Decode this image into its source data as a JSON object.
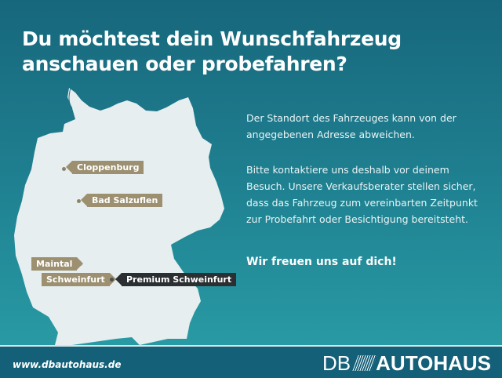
{
  "headline": "Du möchtest dein Wunschfahrzeug anschauen oder probefahren?",
  "map": {
    "locations": [
      {
        "label": "Cloppenburg",
        "style": "standard"
      },
      {
        "label": "Bad Salzuflen",
        "style": "standard"
      },
      {
        "label": "Maintal",
        "style": "standard"
      },
      {
        "label": "Schweinfurt",
        "style": "standard"
      },
      {
        "label": "Premium Schweinfurt",
        "style": "premium"
      }
    ],
    "map_color": "#e6eef0",
    "tag_color": "#9d9070",
    "premium_tag_color": "#2b2f31"
  },
  "body": {
    "paragraph1": "Der Standort des Fahrzeuges kann von der angegebenen Adresse abweichen.",
    "paragraph2": "Bitte kontaktiere uns deshalb vor deinem Besuch. Unsere Verkaufsberater stellen sicher, dass das Fahrzeug zum vereinbarten Zeitpunkt zur Probefahrt oder Besichtigung bereitsteht.",
    "closing": "Wir freuen uns auf dich!"
  },
  "footer": {
    "url": "www.dbautohaus.de",
    "logo_prefix": "DB",
    "logo_main": "AUTOHAUS",
    "background": "#146079"
  }
}
